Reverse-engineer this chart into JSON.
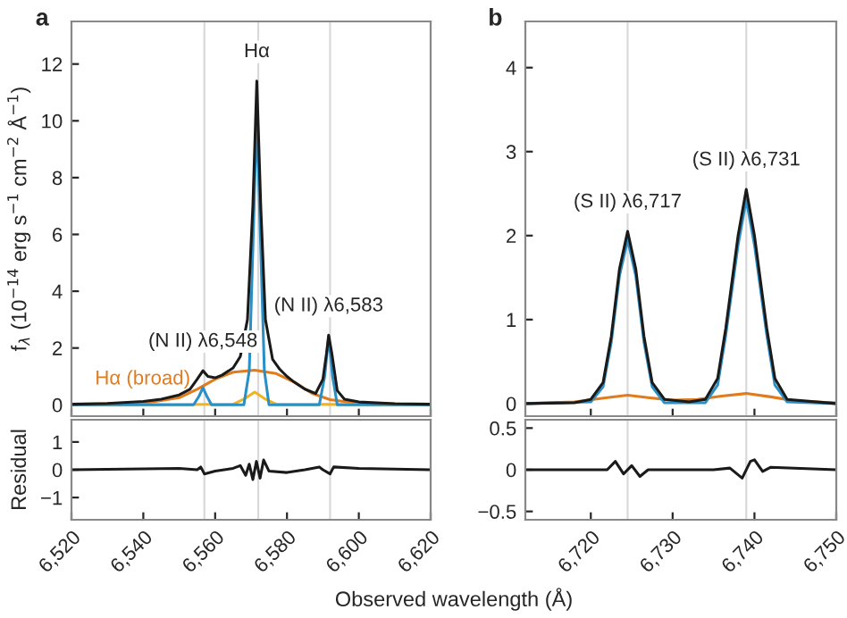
{
  "chart_data": [
    {
      "type": "line",
      "title": "a",
      "ylabel": "f$_{λ}$ (10$^{−14}$ erg s$^{−1}$ cm$^{−2}$ Å$^{−1}$)",
      "xlim": [
        6520,
        6620
      ],
      "xticks": [
        {
          "value": 6520,
          "label": null
        },
        {
          "value": 6540,
          "label": null
        },
        {
          "value": 6560,
          "label": null
        },
        {
          "value": 6580,
          "label": null
        },
        {
          "value": 6600,
          "label": null
        },
        {
          "value": 6620,
          "label": null
        }
      ],
      "ylim": [
        -0.4,
        13.5
      ],
      "yticks": [
        0,
        2,
        4,
        6,
        8,
        10,
        12
      ],
      "tick_labels": "y",
      "legend": false,
      "grid": false,
      "ref_lines": [
        {
          "axis": "x",
          "value": 6557,
          "color": "#d9d9d9"
        },
        {
          "axis": "x",
          "value": 6572,
          "color": "#d9d9d9"
        },
        {
          "axis": "x",
          "value": 6592,
          "color": "#d9d9d9"
        }
      ],
      "annotations": [
        {
          "text": "Hα",
          "x": 6571.6,
          "y": 11.4
        },
        {
          "text": "(N II) λ6,548",
          "x": 6556.6,
          "y": 1.2
        },
        {
          "text": "(N II) λ6,583",
          "x": 6591.6,
          "y": 2.45
        }
      ],
      "series": [
        {
          "name": "Hα (broad)",
          "color": "#e07b1e",
          "x": [
            6520,
            6540,
            6545,
            6550,
            6555,
            6560,
            6565,
            6571,
            6577,
            6582,
            6587,
            6592,
            6600,
            6620
          ],
          "values": [
            0.01,
            0.06,
            0.15,
            0.25,
            0.55,
            0.9,
            1.15,
            1.22,
            1.1,
            0.8,
            0.4,
            0.18,
            0.05,
            0.01
          ]
        },
        {
          "color": "#f0b323",
          "x": [
            6520,
            6565,
            6568,
            6571,
            6574,
            6577,
            6620
          ],
          "values": [
            0,
            0.02,
            0.2,
            0.45,
            0.2,
            0.02,
            0
          ]
        },
        {
          "color": "#2a8fc4",
          "x": [
            6520,
            6554,
            6555.5,
            6556.6,
            6557.7,
            6559,
            6568,
            6569.5,
            6570.5,
            6571.6,
            6572.7,
            6573.7,
            6575,
            6589,
            6590.5,
            6591.6,
            6592.7,
            6594,
            6620
          ],
          "values": [
            0,
            0,
            0.3,
            0.6,
            0.3,
            0,
            0,
            1.2,
            5.5,
            10.2,
            5.5,
            1.2,
            0,
            0,
            1.0,
            2.4,
            1.0,
            0,
            0
          ]
        },
        {
          "color": "#1a1a1a",
          "x": [
            6520,
            6530,
            6540,
            6545,
            6550,
            6553,
            6555,
            6556.6,
            6558,
            6560,
            6562,
            6565,
            6567,
            6569,
            6570.5,
            6571.6,
            6572.7,
            6574,
            6576,
            6578,
            6580,
            6582,
            6585,
            6588,
            6590,
            6591,
            6591.6,
            6592.5,
            6594,
            6596,
            6600,
            6610,
            6620
          ],
          "values": [
            0.02,
            0.05,
            0.12,
            0.2,
            0.35,
            0.55,
            0.9,
            1.2,
            1.0,
            0.95,
            1.05,
            1.3,
            1.7,
            3.0,
            7.0,
            11.4,
            7.0,
            3.0,
            1.6,
            1.25,
            1.0,
            0.8,
            0.55,
            0.4,
            0.9,
            1.8,
            2.45,
            1.8,
            0.5,
            0.2,
            0.1,
            0.04,
            0.02
          ]
        }
      ]
    },
    {
      "type": "line",
      "ylabel": "Residual",
      "xlabel": "Observed wavelength (Å)",
      "xlim": [
        6520,
        6620
      ],
      "xticks": [
        {
          "value": 6520,
          "label": "6,520"
        },
        {
          "value": 6540,
          "label": "6,540"
        },
        {
          "value": 6560,
          "label": "6,560"
        },
        {
          "value": 6580,
          "label": "6,580"
        },
        {
          "value": 6600,
          "label": "6,600"
        },
        {
          "value": 6620,
          "label": "6,620"
        }
      ],
      "ylim": [
        -1.8,
        1.8
      ],
      "yticks": [
        {
          "value": -1,
          "label": "−1"
        },
        0,
        1
      ],
      "legend": false,
      "grid": false,
      "ref_lines": [
        {
          "axis": "x",
          "value": 6557,
          "color": "#d9d9d9"
        },
        {
          "axis": "x",
          "value": 6572,
          "color": "#d9d9d9"
        },
        {
          "axis": "x",
          "value": 6592,
          "color": "#d9d9d9"
        }
      ],
      "series": [
        {
          "color": "#1a1a1a",
          "x": [
            6520,
            6550,
            6555,
            6556,
            6557,
            6560,
            6565,
            6567,
            6568.5,
            6569.5,
            6570.5,
            6571.5,
            6572.5,
            6573.5,
            6575,
            6580,
            6585,
            6589,
            6590,
            6592,
            6593,
            6600,
            6620
          ],
          "values": [
            0,
            0.05,
            0,
            0.1,
            -0.15,
            -0.05,
            0.05,
            0.15,
            -0.2,
            0.2,
            -0.35,
            0.3,
            -0.3,
            0.35,
            -0.05,
            -0.1,
            0,
            0.1,
            0,
            -0.15,
            0.1,
            0.05,
            0
          ]
        }
      ]
    },
    {
      "type": "line",
      "title": "b",
      "xlim": [
        6712,
        6750
      ],
      "xticks": [
        {
          "value": 6720,
          "label": null
        },
        {
          "value": 6730,
          "label": null
        },
        {
          "value": 6740,
          "label": null
        },
        {
          "value": 6750,
          "label": null
        }
      ],
      "ylim": [
        -0.15,
        4.55
      ],
      "yticks": [
        0,
        1,
        2,
        3,
        4
      ],
      "tick_labels": "y",
      "legend": false,
      "grid": false,
      "ref_lines": [
        {
          "axis": "x",
          "value": 6724.5,
          "color": "#d9d9d9"
        },
        {
          "axis": "x",
          "value": 6739,
          "color": "#d9d9d9"
        }
      ],
      "annotations": [
        {
          "text": "(S II) λ6,717",
          "x": 6724.5,
          "y": 2.05
        },
        {
          "text": "(S II) λ6,731",
          "x": 6739,
          "y": 2.55
        }
      ],
      "series": [
        {
          "color": "#e07b1e",
          "x": [
            6712,
            6718,
            6722,
            6724.5,
            6727,
            6730,
            6733,
            6736,
            6739,
            6742,
            6745,
            6750
          ],
          "values": [
            0,
            0.02,
            0.07,
            0.1,
            0.07,
            0.04,
            0.05,
            0.09,
            0.12,
            0.08,
            0.03,
            0.01
          ]
        },
        {
          "color": "#2a8fc4",
          "x": [
            6712,
            6720,
            6721.5,
            6722.5,
            6723.5,
            6724.5,
            6725.5,
            6726.5,
            6727.5,
            6729,
            6734,
            6735.5,
            6736.5,
            6738,
            6739,
            6740,
            6741.5,
            6742.5,
            6744,
            6750
          ],
          "values": [
            0,
            0.02,
            0.2,
            0.73,
            1.52,
            1.95,
            1.52,
            0.73,
            0.2,
            0.01,
            0.01,
            0.22,
            0.82,
            1.89,
            2.43,
            1.89,
            0.82,
            0.22,
            0.02,
            0
          ]
        },
        {
          "color": "#1a1a1a",
          "x": [
            6712,
            6718,
            6720,
            6721.5,
            6722.5,
            6723.5,
            6724.5,
            6725.5,
            6726.5,
            6727.5,
            6729,
            6732,
            6734,
            6735.5,
            6736.5,
            6738,
            6739,
            6740,
            6741.5,
            6742.5,
            6744,
            6750
          ],
          "values": [
            0,
            0.01,
            0.05,
            0.25,
            0.8,
            1.6,
            2.05,
            1.6,
            0.8,
            0.25,
            0.05,
            0.02,
            0.05,
            0.3,
            0.9,
            2.0,
            2.55,
            2.0,
            0.9,
            0.3,
            0.05,
            0
          ]
        }
      ]
    },
    {
      "type": "line",
      "xlim": [
        6712,
        6750
      ],
      "xticks": [
        {
          "value": 6720,
          "label": "6,720"
        },
        {
          "value": 6730,
          "label": "6,730"
        },
        {
          "value": 6740,
          "label": "6,740"
        },
        {
          "value": 6750,
          "label": "6,750"
        }
      ],
      "ylim": [
        -0.6,
        0.6
      ],
      "yticks": [
        {
          "value": -0.5,
          "label": "−0.5"
        },
        0,
        0.5
      ],
      "legend": false,
      "grid": false,
      "ref_lines": [
        {
          "axis": "x",
          "value": 6724.5,
          "color": "#d9d9d9"
        },
        {
          "axis": "x",
          "value": 6739,
          "color": "#d9d9d9"
        }
      ],
      "series": [
        {
          "color": "#1a1a1a",
          "x": [
            6712,
            6722,
            6723,
            6724,
            6725,
            6726,
            6727,
            6735,
            6737,
            6738.5,
            6739.5,
            6740,
            6741,
            6742,
            6750
          ],
          "values": [
            0,
            0,
            0.1,
            -0.05,
            0.05,
            -0.08,
            0,
            0,
            0.02,
            -0.1,
            0.1,
            0.12,
            -0.02,
            0.03,
            0
          ]
        }
      ]
    }
  ]
}
